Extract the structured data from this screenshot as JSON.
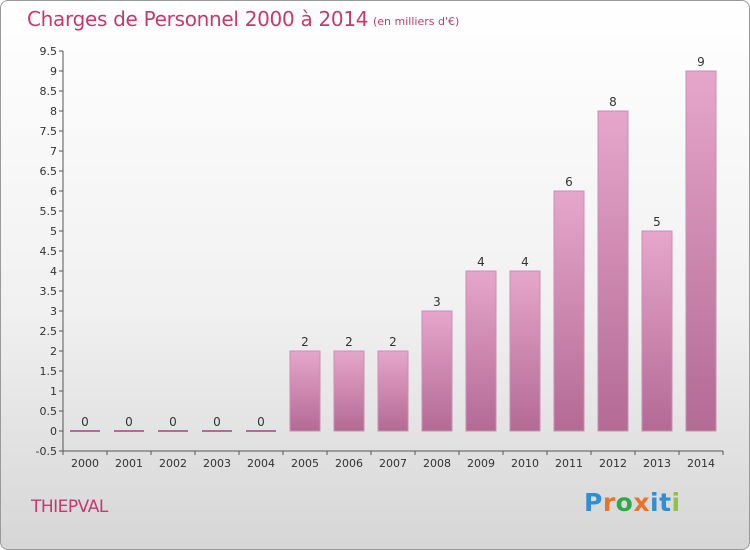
{
  "header": {
    "title": "Charges de Personnel 2000 à 2014",
    "subtitle": "(en milliers d'€)"
  },
  "footer": {
    "city": "THIEPVAL",
    "logo_letters": [
      "P",
      "r",
      "o",
      "x",
      "i",
      "t",
      "i"
    ],
    "logo_colors": [
      "#2f8fd6",
      "#e8742a",
      "#2fa84a",
      "#e8742a",
      "#2f8fd6",
      "#2f8fd6",
      "#8cc63f"
    ]
  },
  "chart_data": {
    "type": "bar",
    "title": "Charges de Personnel 2000 à 2014",
    "subtitle": "(en milliers d'€)",
    "xlabel": "",
    "ylabel": "",
    "categories": [
      "2000",
      "2001",
      "2002",
      "2003",
      "2004",
      "2005",
      "2006",
      "2007",
      "2008",
      "2009",
      "2010",
      "2011",
      "2012",
      "2013",
      "2014"
    ],
    "values": [
      0,
      0,
      0,
      0,
      0,
      2,
      2,
      2,
      3,
      4,
      4,
      6,
      8,
      5,
      9
    ],
    "data_labels": [
      "0",
      "0",
      "0",
      "0",
      "0",
      "2",
      "2",
      "2",
      "3",
      "4",
      "4",
      "6",
      "8",
      "5",
      "9"
    ],
    "ylim": [
      -0.5,
      9.5
    ],
    "yticks": [
      "-0.5",
      "0",
      "0.5",
      "1",
      "1.5",
      "2",
      "2.5",
      "3",
      "3.5",
      "4",
      "4.5",
      "5",
      "5.5",
      "6",
      "6.5",
      "7",
      "7.5",
      "8",
      "8.5",
      "9",
      "9.5"
    ],
    "grid": false,
    "legend": "none",
    "colors": {
      "bar_light": "#e6a6cb",
      "bar_dark": "#b36a94",
      "bar_edge": "#c88fb0",
      "text_accent": "#c43a6e"
    }
  }
}
